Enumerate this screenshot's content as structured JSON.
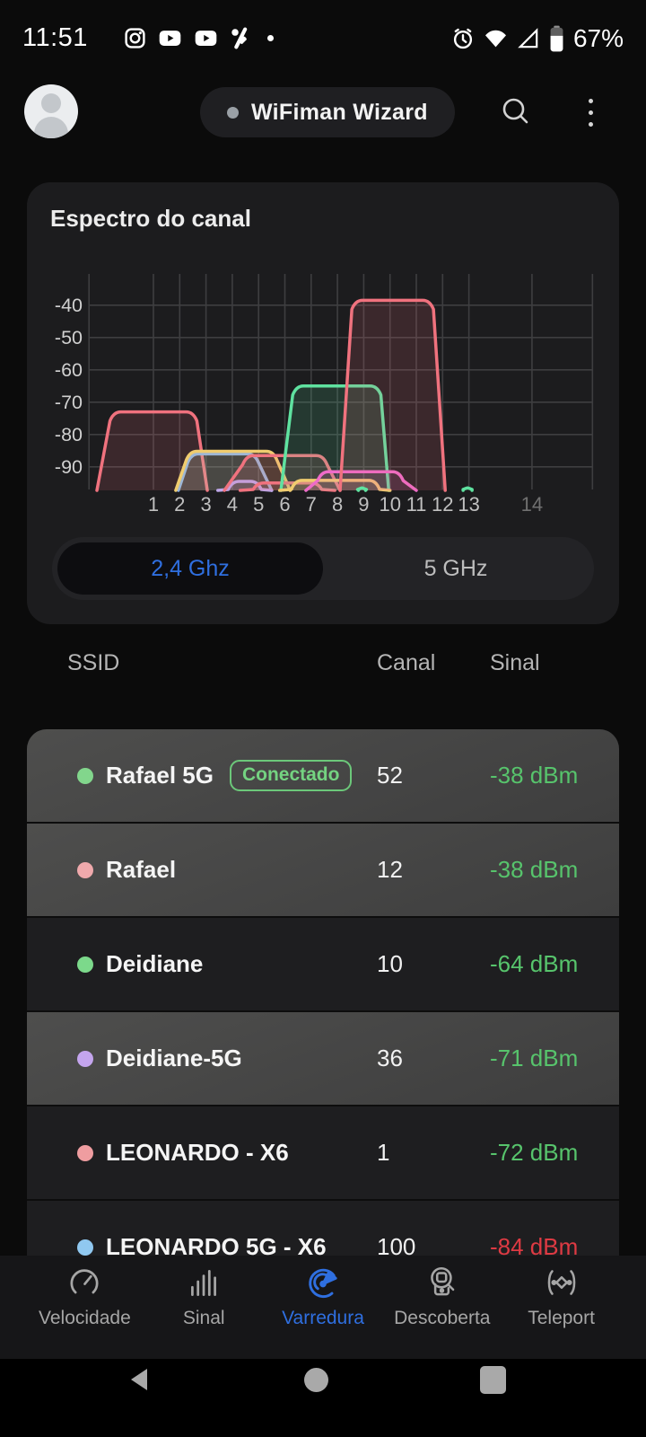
{
  "status_bar": {
    "time": "11:51",
    "battery_percent": "67%",
    "left_icons": [
      "instagram-icon",
      "youtube-icon",
      "youtube-icon",
      "percent-icon",
      "notification-dot"
    ],
    "right_icons": [
      "alarm-icon",
      "wifi-icon",
      "cell-signal-icon",
      "battery-icon"
    ]
  },
  "header": {
    "app_title": "WiFiman Wizard"
  },
  "spectrum_card": {
    "title": "Espectro do canal",
    "band_toggle": [
      {
        "label": "2,4 Ghz",
        "selected": true
      },
      {
        "label": "5 GHz",
        "selected": false
      }
    ]
  },
  "chart_data": {
    "type": "area",
    "title": "Espectro do canal",
    "xlabel": "",
    "ylabel": "",
    "grid": true,
    "ylim": [
      -98,
      -33
    ],
    "y_ticks": [
      {
        "label": "-40",
        "value": -40
      },
      {
        "label": "-50",
        "value": -50
      },
      {
        "label": "-60",
        "value": -60
      },
      {
        "label": "-70",
        "value": -70
      },
      {
        "label": "-80",
        "value": -80
      },
      {
        "label": "-90",
        "value": -90
      }
    ],
    "x_ticks": [
      {
        "label": "1",
        "ch": 1
      },
      {
        "label": "2",
        "ch": 2
      },
      {
        "label": "3",
        "ch": 3
      },
      {
        "label": "4",
        "ch": 4
      },
      {
        "label": "5",
        "ch": 5
      },
      {
        "label": "6",
        "ch": 6
      },
      {
        "label": "7",
        "ch": 7
      },
      {
        "label": "8",
        "ch": 8
      },
      {
        "label": "9",
        "ch": 9
      },
      {
        "label": "10",
        "ch": 10
      },
      {
        "label": "11",
        "ch": 11
      },
      {
        "label": "12",
        "ch": 12
      },
      {
        "label": "13",
        "ch": 13
      },
      {
        "label": "14",
        "ch": 15.4,
        "dim": true
      }
    ],
    "grid_channels": [
      -1.45,
      1,
      2,
      3,
      4,
      5,
      6,
      7,
      8,
      9,
      10,
      11,
      12,
      13,
      15.4,
      17.7
    ],
    "series": [
      {
        "name": "channel1-network",
        "color": "#F0727E",
        "top_dbm": -73,
        "bottom_from": -1.15,
        "top_from": -0.55,
        "top_to": 2.55,
        "bottom_to": 3.05
      },
      {
        "name": "blue-network",
        "color": "#8FB3E8",
        "top_dbm": -86,
        "bottom_from": 1.95,
        "top_from": 2.4,
        "top_to": 4.9,
        "bottom_to": 5.5
      },
      {
        "name": "yellow-network",
        "color": "#F0CC6F",
        "top_dbm": -85.2,
        "bottom_from": 1.85,
        "top_from": 2.35,
        "top_to": 5.6,
        "bottom_to": 6.2
      },
      {
        "name": "purple-network",
        "color": "#BFA7EA",
        "top_dbm": -94.5,
        "bottom_from": 3.45,
        "top_from": 3.95,
        "top_to": 5.0,
        "bottom_to": 5.5
      },
      {
        "name": "salmon-network-2",
        "color": "#F0727E",
        "top_dbm": -86.5,
        "bottom_from": 3.7,
        "top_from": 4.5,
        "top_to": 7.5,
        "bottom_to": 8.1
      },
      {
        "name": "salmon-network-3",
        "color": "#F0727E",
        "top_dbm": -95,
        "bottom_from": 4.3,
        "top_from": 4.9,
        "top_to": 7.3,
        "bottom_to": 7.9
      },
      {
        "name": "green-network",
        "color": "#5FE2A0",
        "top_dbm": -65,
        "bottom_from": 5.85,
        "top_from": 6.4,
        "top_to": 9.55,
        "bottom_to": 9.95
      },
      {
        "name": "yellow-network-2",
        "color": "#F0CC6F",
        "top_dbm": -94.2,
        "bottom_from": 5.8,
        "top_from": 6.35,
        "top_to": 9.5,
        "bottom_to": 10.0
      },
      {
        "name": "magenta-network",
        "color": "#EE6BC9",
        "top_dbm": -91.5,
        "bottom_from": 6.8,
        "top_from": 7.35,
        "top_to": 10.4,
        "bottom_to": 11.0
      },
      {
        "name": "strong-network",
        "color": "#F0727E",
        "top_dbm": -38.5,
        "bottom_from": 8.1,
        "top_from": 8.65,
        "top_to": 11.55,
        "bottom_to": 12.1
      },
      {
        "name": "green-mark-9",
        "color": "#5FE2A0",
        "top_dbm": -96.5,
        "bottom_from": 8.8,
        "top_from": 8.87,
        "top_to": 9.0,
        "bottom_to": 9.07
      },
      {
        "name": "green-mark-13",
        "color": "#5FE2A0",
        "top_dbm": -96.5,
        "bottom_from": 12.78,
        "top_from": 12.88,
        "top_to": 13.02,
        "bottom_to": 13.12
      }
    ]
  },
  "table": {
    "headers": [
      "SSID",
      "Canal",
      "Sinal"
    ],
    "rows": [
      {
        "ssid": "Rafael 5G",
        "badge": "Conectado",
        "canal": "52",
        "sinal": "-38 dBm",
        "dot_color": "#82D68C",
        "sinal_color": "#57C46C",
        "highlight": true
      },
      {
        "ssid": "Rafael",
        "canal": "12",
        "sinal": "-38 dBm",
        "dot_color": "#EFA9AC",
        "sinal_color": "#57C46C",
        "highlight": true
      },
      {
        "ssid": "Deidiane",
        "canal": "10",
        "sinal": "-64 dBm",
        "dot_color": "#7CD98B",
        "sinal_color": "#57C46C",
        "highlight": false
      },
      {
        "ssid": "Deidiane-5G",
        "canal": "36",
        "sinal": "-71 dBm",
        "dot_color": "#C4A5EE",
        "sinal_color": "#57C46C",
        "highlight": true
      },
      {
        "ssid": "LEONARDO - X6",
        "canal": "1",
        "sinal": "-72 dBm",
        "dot_color": "#EF9DA0",
        "sinal_color": "#57C46C",
        "highlight": false
      },
      {
        "ssid": "LEONARDO 5G - X6",
        "canal": "100",
        "sinal": "-84 dBm",
        "dot_color": "#90C8F0",
        "sinal_color": "#DE3A43",
        "highlight": false
      }
    ]
  },
  "bottom_nav": {
    "items": [
      {
        "label": "Velocidade",
        "icon": "gauge-icon",
        "active": false
      },
      {
        "label": "Sinal",
        "icon": "signal-bars-icon",
        "active": false
      },
      {
        "label": "Varredura",
        "icon": "radar-icon",
        "active": true
      },
      {
        "label": "Descoberta",
        "icon": "discovery-icon",
        "active": false
      },
      {
        "label": "Teleport",
        "icon": "teleport-icon",
        "active": false
      }
    ]
  },
  "colors": {
    "accent_blue": "#2F6FE0",
    "signal_green": "#57C46C",
    "signal_red": "#DE3A43",
    "badge_green": "#6FCE7E"
  }
}
